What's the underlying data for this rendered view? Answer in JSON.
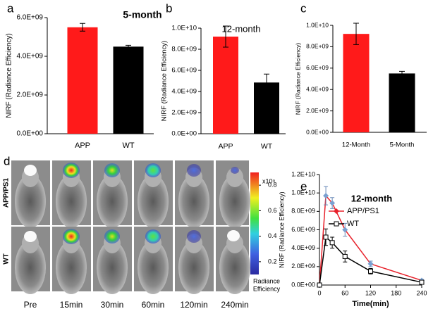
{
  "chart_data": [
    {
      "type": "bar",
      "panel": "a",
      "title": "5-month",
      "y_label": "NIRF (Radiance Efficiency)",
      "categories": [
        "APP",
        "WT"
      ],
      "values": [
        5500000000,
        4500000000
      ],
      "errors": [
        200000000,
        70000000
      ],
      "colors": [
        "#ff1a1a",
        "#000000"
      ],
      "ylim": [
        0,
        6000000000
      ],
      "yticks": [
        {
          "value": 0,
          "label": "0.0E+00"
        },
        {
          "value": 2000000000,
          "label": "2.0E+09"
        },
        {
          "value": 4000000000,
          "label": "4.0E+09"
        },
        {
          "value": 6000000000,
          "label": "6.0E+09"
        }
      ]
    },
    {
      "type": "bar",
      "panel": "b",
      "title": "12-month",
      "y_label": "NIRF (Radiance Efficiency)",
      "categories": [
        "APP",
        "WT"
      ],
      "values": [
        9200000000,
        4850000000
      ],
      "errors": [
        1000000000,
        800000000
      ],
      "colors": [
        "#ff1a1a",
        "#000000"
      ],
      "ylim": [
        0,
        10000000000
      ],
      "yticks": [
        {
          "value": 0,
          "label": "0.0E+00"
        },
        {
          "value": 2000000000,
          "label": "2.0E+09"
        },
        {
          "value": 4000000000,
          "label": "4.0E+09"
        },
        {
          "value": 6000000000,
          "label": "6.0E+09"
        },
        {
          "value": 8000000000,
          "label": "8.0E+09"
        },
        {
          "value": 10000000000,
          "label": "1.0E+10"
        }
      ]
    },
    {
      "type": "bar",
      "panel": "c",
      "y_label": "NIRF (Radiance Efficiency)",
      "categories": [
        "12-Month",
        "5-Month"
      ],
      "values": [
        9200000000,
        5500000000
      ],
      "errors": [
        1000000000,
        200000000
      ],
      "colors": [
        "#ff1a1a",
        "#000000"
      ],
      "ylim": [
        0,
        10000000000
      ],
      "yticks": [
        {
          "value": 0,
          "label": "0.0E+00"
        },
        {
          "value": 2000000000,
          "label": "2.0E+09"
        },
        {
          "value": 4000000000,
          "label": "4.0E+09"
        },
        {
          "value": 6000000000,
          "label": "6.0E+09"
        },
        {
          "value": 8000000000,
          "label": "8.0E+09"
        },
        {
          "value": 10000000000,
          "label": "1.0E+10"
        }
      ]
    },
    {
      "type": "line",
      "panel": "e",
      "title": "12-month",
      "y_label": "NIRF (Radiance Efficiency)",
      "x_label": "Time(min)",
      "x": [
        0,
        15,
        30,
        60,
        120,
        240
      ],
      "series": [
        {
          "name": "APP/PS1",
          "color": "#e8202a",
          "marker": "diamond",
          "values": [
            0,
            9700000000,
            8900000000,
            6000000000,
            2300000000,
            500000000
          ],
          "errors": [
            0,
            1000000000,
            600000000,
            700000000,
            300000000,
            100000000
          ]
        },
        {
          "name": "WT",
          "color": "#000000",
          "marker": "square",
          "values": [
            0,
            5200000000,
            4600000000,
            3100000000,
            1500000000,
            300000000
          ],
          "errors": [
            0,
            900000000,
            600000000,
            600000000,
            300000000,
            100000000
          ]
        }
      ],
      "xlim": [
        0,
        240
      ],
      "xticks": [
        0,
        60,
        120,
        180,
        240
      ],
      "ylim": [
        0,
        12000000000
      ],
      "yticks": [
        {
          "value": 0,
          "label": "0.0E+00"
        },
        {
          "value": 2000000000,
          "label": "2.0E+09"
        },
        {
          "value": 4000000000,
          "label": "4.0E+09"
        },
        {
          "value": 6000000000,
          "label": "6.0E+09"
        },
        {
          "value": 8000000000,
          "label": "8.0E+09"
        },
        {
          "value": 10000000000,
          "label": "1.0E+10"
        },
        {
          "value": 12000000000,
          "label": "1.2E+10"
        }
      ],
      "legend": "upper right"
    }
  ],
  "image_panel": {
    "panel": "d",
    "row_labels": [
      "APP/PS1",
      "WT"
    ],
    "column_labels": [
      "Pre",
      "15min",
      "30min",
      "60min",
      "120min",
      "240min"
    ],
    "colorbar": {
      "exponent_label": "x10⁹",
      "ticks": [
        0.2,
        0.4,
        0.6,
        0.8
      ],
      "lim": [
        0.1,
        0.9
      ],
      "title": [
        "Radiance",
        "Efficiency"
      ]
    }
  }
}
